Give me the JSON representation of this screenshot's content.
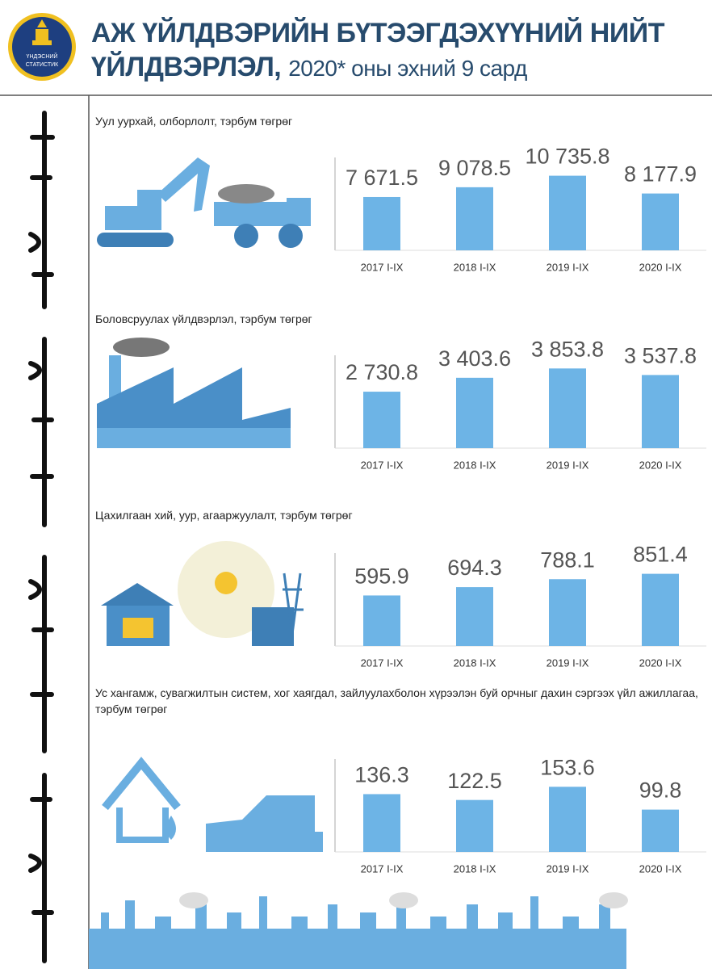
{
  "header": {
    "title": [
      "АЖ ҮЙЛДВЭРИЙН БҮТЭЭГДЭХҮҮНИЙ НИЙТ",
      "ҮЙЛДВЭРЛЭЛ,"
    ],
    "subtitle": "2020* оны эхний 9 сард",
    "logo_text": [
      "ҮНДЭСНИЙ",
      "СТАТИСТИК"
    ]
  },
  "chart_data": [
    {
      "type": "bar",
      "title": "Уул уурхай, олборлолт, тэрбум төгрөг",
      "categories": [
        "2017 I-IX",
        "2018 I-IX",
        "2019 I-IX",
        "2020 I-IX"
      ],
      "values": [
        7671.5,
        9078.5,
        10735.8,
        8177.9
      ],
      "value_labels": [
        "7 671.5",
        "9 078.5",
        "10 735.8",
        "8 177.9"
      ],
      "color": "#6db4e6",
      "ylim": [
        0,
        12200
      ]
    },
    {
      "type": "bar",
      "title": "Боловсруулах үйлдвэрлэл, тэрбум төгрөг",
      "categories": [
        "2017 I-IX",
        "2018 I-IX",
        "2019 I-IX",
        "2020 I-IX"
      ],
      "values": [
        2730.8,
        3403.6,
        3853.8,
        3537.8
      ],
      "value_labels": [
        "2 730.8",
        "3 403.6",
        "3 853.8",
        "3 537.8"
      ],
      "color": "#6db4e6",
      "ylim": [
        0,
        4100
      ]
    },
    {
      "type": "bar",
      "title": "Цахилгаан хий, уур, агааржуулалт, тэрбум төгрөг",
      "categories": [
        "2017 I-IX",
        "2018 I-IX",
        "2019 I-IX",
        "2020 I-IX"
      ],
      "values": [
        595.9,
        694.3,
        788.1,
        851.4
      ],
      "color": "#6db4e6",
      "ylim": [
        0,
        1000
      ]
    },
    {
      "type": "bar",
      "title": "Ус хангамж, сувагжилтын систем, хог хаягдал, зайлуулахболон хүрээлэн буй орчныг дахин сэргээх үйл ажиллагаа, тэрбум төгрөг",
      "categories": [
        "2017 I-IX",
        "2018 I-IX",
        "2019 I-IX",
        "2020 I-IX"
      ],
      "values": [
        136.3,
        122.5,
        153.6,
        99.8
      ],
      "color": "#6db4e6",
      "ylim": [
        0,
        200
      ]
    }
  ]
}
